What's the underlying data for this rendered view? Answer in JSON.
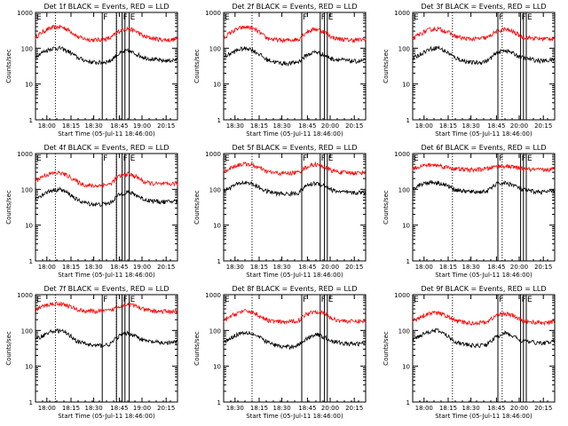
{
  "colors": {
    "events": "#000000",
    "lld": "#ff0000",
    "axes": "#000000"
  },
  "common": {
    "ylabel": "Counts/sec",
    "y_tick_labels": [
      "1",
      "10",
      "100",
      "1000"
    ],
    "xlabel": "Start Time (05-Jul-11 18:46:00)"
  },
  "chart_data": [
    {
      "type": "line",
      "title": "Det 1f BLACK = Events, RED = LLD",
      "x_tick_labels": [
        "18:00",
        "18:15",
        "18:30",
        "18:45",
        "19:00",
        "20:15"
      ],
      "xlabel": "Start Time (05-Jul-11 18:46:00)",
      "ylabel": "Counts/sec",
      "y_scale": "log",
      "ylim": [
        1,
        1000
      ],
      "flags": [
        {
          "label": "E",
          "x": 0.0
        },
        {
          "label": "F",
          "x": 0.47
        },
        {
          "label": "F",
          "x": 0.61
        },
        {
          "label": "E",
          "x": 0.66
        }
      ],
      "dotted_x": [
        0.14,
        0.57
      ],
      "vlines": [
        0.47,
        0.57,
        0.61,
        0.63,
        0.66
      ],
      "series": [
        {
          "values": [
            200,
            300,
            380,
            400,
            320,
            210,
            180,
            170,
            175,
            190,
            300,
            360,
            300,
            210,
            190,
            175,
            170,
            180
          ]
        },
        {
          "values": [
            60,
            80,
            100,
            100,
            80,
            55,
            45,
            40,
            40,
            45,
            70,
            85,
            70,
            55,
            50,
            45,
            45,
            48
          ]
        }
      ]
    },
    {
      "type": "line",
      "title": "Det 2f BLACK = Events, RED = LLD",
      "x_tick_labels": [
        "18:30",
        "18:15",
        "18:30",
        "18:45",
        "20:00",
        "20:15"
      ],
      "xlabel": "Start Time (05-Jul-11 18:46:00)",
      "ylabel": "Counts/sec",
      "y_scale": "log",
      "ylim": [
        1,
        1000
      ],
      "flags": [
        {
          "label": "E",
          "x": 0.0
        },
        {
          "label": "F",
          "x": 0.55
        },
        {
          "label": "F",
          "x": 0.68
        },
        {
          "label": "E",
          "x": 0.73
        }
      ],
      "dotted_x": [
        0.2,
        0.55
      ],
      "vlines": [
        0.55,
        0.68,
        0.71,
        0.73
      ],
      "series": [
        {
          "values": [
            190,
            290,
            370,
            390,
            310,
            200,
            175,
            165,
            170,
            180,
            290,
            350,
            290,
            200,
            180,
            170,
            170,
            175
          ]
        },
        {
          "values": [
            55,
            75,
            95,
            100,
            75,
            50,
            42,
            38,
            38,
            42,
            65,
            80,
            65,
            50,
            48,
            44,
            43,
            46
          ]
        }
      ]
    },
    {
      "type": "line",
      "title": "Det 3f BLACK = Events, RED = LLD",
      "x_tick_labels": [
        "18:00",
        "18:15",
        "18:30",
        "18:45",
        "20:00",
        "20:15"
      ],
      "xlabel": "Start Time (05-Jul-11 18:46:00)",
      "ylabel": "Counts/sec",
      "y_scale": "log",
      "ylim": [
        1,
        1000
      ],
      "flags": [
        {
          "label": "E",
          "x": 0.0
        },
        {
          "label": "F",
          "x": 0.6
        },
        {
          "label": "F",
          "x": 0.76
        },
        {
          "label": "E",
          "x": 0.8
        }
      ],
      "dotted_x": [
        0.28,
        0.63
      ],
      "vlines": [
        0.6,
        0.76,
        0.78,
        0.8
      ],
      "series": [
        {
          "values": [
            180,
            260,
            330,
            350,
            300,
            220,
            190,
            180,
            185,
            200,
            290,
            340,
            290,
            210,
            195,
            185,
            185,
            190
          ]
        },
        {
          "values": [
            50,
            70,
            95,
            105,
            80,
            55,
            45,
            40,
            40,
            45,
            70,
            90,
            72,
            55,
            50,
            45,
            45,
            48
          ]
        }
      ]
    },
    {
      "type": "line",
      "title": "Det 4f BLACK = Events, RED = LLD",
      "x_tick_labels": [
        "18:00",
        "18:15",
        "18:30",
        "18:45",
        "19:00",
        "20:15"
      ],
      "xlabel": "Start Time (05-Jul-11 18:46:00)",
      "ylabel": "Counts/sec",
      "y_scale": "log",
      "ylim": [
        1,
        1000
      ],
      "flags": [
        {
          "label": "E",
          "x": 0.0
        },
        {
          "label": "F",
          "x": 0.47
        },
        {
          "label": "F",
          "x": 0.61
        },
        {
          "label": "E",
          "x": 0.66
        }
      ],
      "dotted_x": [
        0.14,
        0.57
      ],
      "vlines": [
        0.47,
        0.57,
        0.61,
        0.63,
        0.66
      ],
      "series": [
        {
          "values": [
            170,
            240,
            280,
            290,
            230,
            160,
            130,
            125,
            130,
            140,
            230,
            270,
            230,
            160,
            145,
            140,
            140,
            150
          ]
        },
        {
          "values": [
            55,
            75,
            95,
            100,
            75,
            50,
            42,
            38,
            38,
            42,
            70,
            85,
            70,
            52,
            48,
            45,
            45,
            48
          ]
        }
      ]
    },
    {
      "type": "line",
      "title": "Det 5f BLACK = Events, RED = LLD",
      "x_tick_labels": [
        "18:30",
        "18:15",
        "18:30",
        "18:45",
        "20:00",
        "20:15"
      ],
      "xlabel": "Start Time (05-Jul-11 18:46:00)",
      "ylabel": "Counts/sec",
      "y_scale": "log",
      "ylim": [
        1,
        1000
      ],
      "flags": [
        {
          "label": "E",
          "x": 0.0
        },
        {
          "label": "F",
          "x": 0.55
        },
        {
          "label": "F",
          "x": 0.68
        },
        {
          "label": "E",
          "x": 0.73
        }
      ],
      "dotted_x": [
        0.2,
        0.55
      ],
      "vlines": [
        0.55,
        0.68,
        0.71,
        0.73
      ],
      "series": [
        {
          "values": [
            300,
            420,
            500,
            510,
            420,
            320,
            290,
            280,
            285,
            300,
            430,
            500,
            430,
            330,
            300,
            290,
            290,
            300
          ]
        },
        {
          "values": [
            90,
            120,
            150,
            155,
            120,
            90,
            80,
            75,
            75,
            80,
            130,
            150,
            130,
            95,
            85,
            80,
            80,
            85
          ]
        }
      ]
    },
    {
      "type": "line",
      "title": "Det 6f BLACK = Events, RED = LLD",
      "x_tick_labels": [
        "18:00",
        "18:15",
        "18:30",
        "18:45",
        "20:00",
        "20:15"
      ],
      "xlabel": "Start Time (05-Jul-11 18:46:00)",
      "ylabel": "Counts/sec",
      "y_scale": "log",
      "ylim": [
        1,
        1000
      ],
      "flags": [
        {
          "label": "E",
          "x": 0.0
        },
        {
          "label": "F",
          "x": 0.6
        },
        {
          "label": "F",
          "x": 0.76
        },
        {
          "label": "E",
          "x": 0.8
        }
      ],
      "dotted_x": [
        0.28,
        0.63
      ],
      "vlines": [
        0.6,
        0.76,
        0.78,
        0.8
      ],
      "series": [
        {
          "values": [
            380,
            450,
            480,
            470,
            420,
            380,
            360,
            350,
            360,
            380,
            440,
            450,
            420,
            380,
            360,
            350,
            350,
            360
          ]
        },
        {
          "values": [
            110,
            140,
            160,
            155,
            130,
            100,
            90,
            85,
            85,
            90,
            140,
            150,
            135,
            100,
            90,
            85,
            85,
            90
          ]
        }
      ]
    },
    {
      "type": "line",
      "title": "Det 7f BLACK = Events, RED = LLD",
      "x_tick_labels": [
        "18:00",
        "18:15",
        "18:30",
        "18:45",
        "19:00",
        "20:15"
      ],
      "xlabel": "Start Time (05-Jul-11 18:46:00)",
      "ylabel": "Counts/sec",
      "y_scale": "log",
      "ylim": [
        1,
        1000
      ],
      "flags": [
        {
          "label": "E",
          "x": 0.0
        },
        {
          "label": "F",
          "x": 0.47
        },
        {
          "label": "F",
          "x": 0.61
        },
        {
          "label": "E",
          "x": 0.66
        }
      ],
      "dotted_x": [
        0.14,
        0.57
      ],
      "vlines": [
        0.47,
        0.57,
        0.61,
        0.63,
        0.66
      ],
      "series": [
        {
          "values": [
            380,
            480,
            560,
            570,
            480,
            380,
            350,
            340,
            345,
            360,
            480,
            540,
            480,
            380,
            350,
            340,
            340,
            350
          ]
        },
        {
          "values": [
            55,
            75,
            95,
            100,
            75,
            50,
            42,
            38,
            38,
            42,
            70,
            85,
            70,
            52,
            48,
            45,
            45,
            48
          ]
        }
      ]
    },
    {
      "type": "line",
      "title": "Det 8f BLACK = Events, RED = LLD",
      "x_tick_labels": [
        "18:30",
        "18:15",
        "18:30",
        "18:45",
        "20:00",
        "20:15"
      ],
      "xlabel": "Start Time (05-Jul-11 18:46:00)",
      "ylabel": "Counts/sec",
      "y_scale": "log",
      "ylim": [
        1,
        1000
      ],
      "flags": [
        {
          "label": "E",
          "x": 0.0
        },
        {
          "label": "F",
          "x": 0.55
        },
        {
          "label": "F",
          "x": 0.68
        },
        {
          "label": "E",
          "x": 0.73
        }
      ],
      "dotted_x": [
        0.2,
        0.55
      ],
      "vlines": [
        0.55,
        0.68,
        0.71,
        0.73
      ],
      "series": [
        {
          "values": [
            180,
            260,
            330,
            350,
            280,
            200,
            180,
            170,
            175,
            190,
            300,
            350,
            300,
            210,
            190,
            180,
            180,
            185
          ]
        },
        {
          "values": [
            45,
            65,
            85,
            90,
            70,
            50,
            40,
            35,
            35,
            40,
            60,
            80,
            65,
            50,
            45,
            42,
            42,
            45
          ]
        }
      ]
    },
    {
      "type": "line",
      "title": "Det 9f BLACK = Events, RED = LLD",
      "x_tick_labels": [
        "18:00",
        "18:15",
        "18:30",
        "18:45",
        "20:00",
        "20:15"
      ],
      "xlabel": "Start Time (05-Jul-11 18:46:00)",
      "ylabel": "Counts/sec",
      "y_scale": "log",
      "ylim": [
        1,
        1000
      ],
      "flags": [
        {
          "label": "E",
          "x": 0.0
        },
        {
          "label": "F",
          "x": 0.6
        },
        {
          "label": "F",
          "x": 0.76
        },
        {
          "label": "E",
          "x": 0.8
        }
      ],
      "dotted_x": [
        0.28,
        0.63
      ],
      "vlines": [
        0.6,
        0.76,
        0.78,
        0.8
      ],
      "series": [
        {
          "values": [
            180,
            250,
            300,
            310,
            260,
            190,
            170,
            160,
            165,
            175,
            260,
            300,
            260,
            190,
            175,
            165,
            165,
            175
          ]
        },
        {
          "values": [
            55,
            75,
            95,
            100,
            75,
            50,
            42,
            38,
            38,
            42,
            65,
            85,
            70,
            52,
            48,
            45,
            45,
            50
          ]
        }
      ]
    }
  ]
}
